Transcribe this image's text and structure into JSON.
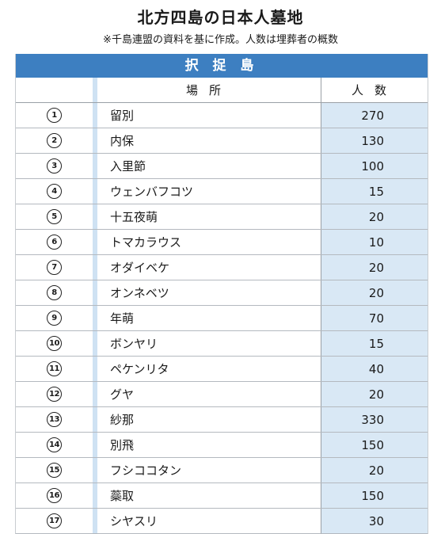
{
  "title": "北方四島の日本人墓地",
  "note": "※千島連盟の資料を基に作成。人数は埋葬者の概数",
  "island": "択 捉 島",
  "columns": {
    "place": "場所",
    "count": "人数"
  },
  "rows": [
    {
      "num": "1",
      "place": "留別",
      "count": "270"
    },
    {
      "num": "2",
      "place": "内保",
      "count": "130"
    },
    {
      "num": "3",
      "place": "入里節",
      "count": "100"
    },
    {
      "num": "4",
      "place": "ウェンバフコツ",
      "count": "15"
    },
    {
      "num": "5",
      "place": "十五夜萌",
      "count": "20"
    },
    {
      "num": "6",
      "place": "トマカラウス",
      "count": "10"
    },
    {
      "num": "7",
      "place": "オダイベケ",
      "count": "20"
    },
    {
      "num": "8",
      "place": "オンネベツ",
      "count": "20"
    },
    {
      "num": "9",
      "place": "年萌",
      "count": "70"
    },
    {
      "num": "10",
      "place": "ボンヤリ",
      "count": "15"
    },
    {
      "num": "11",
      "place": "ペケンリタ",
      "count": "40"
    },
    {
      "num": "12",
      "place": "グヤ",
      "count": "20"
    },
    {
      "num": "13",
      "place": "紗那",
      "count": "330"
    },
    {
      "num": "14",
      "place": "別飛",
      "count": "150"
    },
    {
      "num": "15",
      "place": "フシココタン",
      "count": "20"
    },
    {
      "num": "16",
      "place": "蘂取",
      "count": "150"
    },
    {
      "num": "17",
      "place": "シヤスリ",
      "count": "30"
    }
  ]
}
